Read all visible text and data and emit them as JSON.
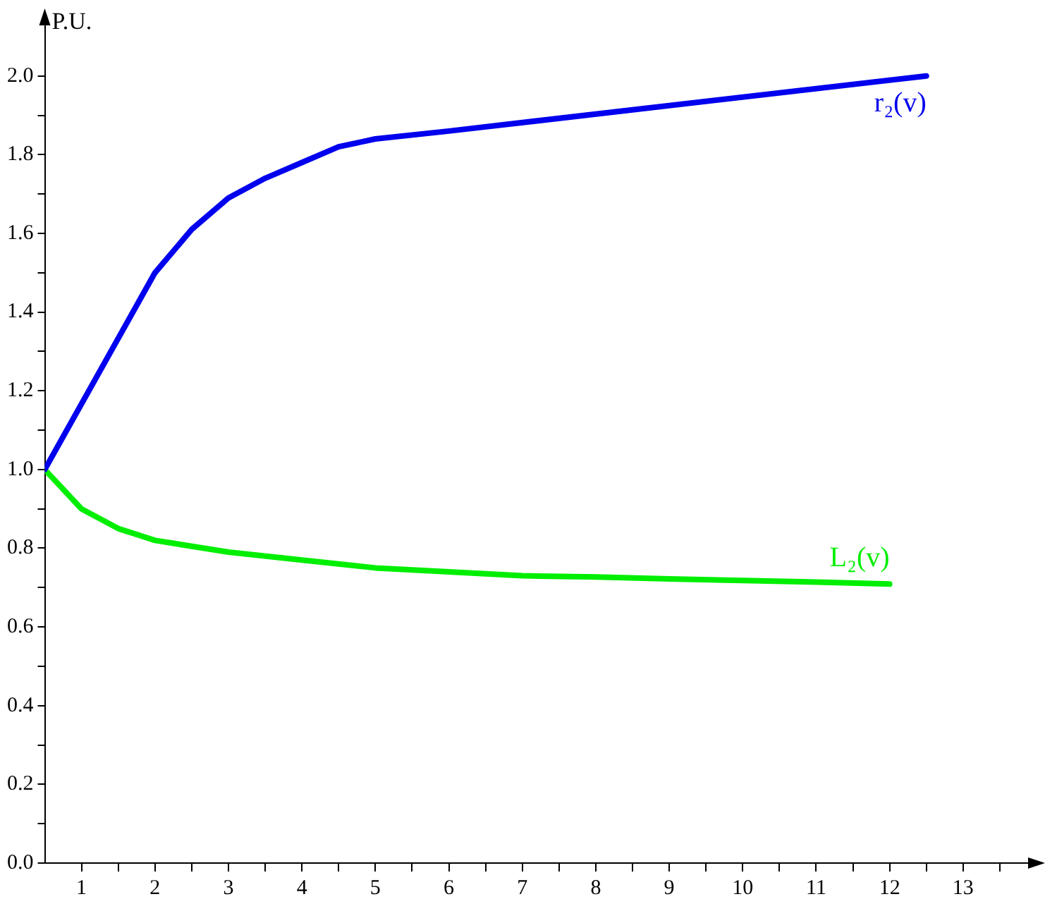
{
  "chart_data": {
    "type": "line",
    "ylabel": "P.U.",
    "xlim": [
      0.5,
      14
    ],
    "ylim": [
      0,
      2.15
    ],
    "xticks": [
      1,
      {
        "value": 1.5,
        "label": null
      },
      2,
      {
        "value": 2.5,
        "label": null
      },
      3,
      {
        "value": 3.5,
        "label": null
      },
      4,
      {
        "value": 4.5,
        "label": null
      },
      5,
      {
        "value": 5.5,
        "label": null
      },
      6,
      {
        "value": 6.5,
        "label": null
      },
      7,
      {
        "value": 7.5,
        "label": null
      },
      8,
      {
        "value": 8.5,
        "label": null
      },
      9,
      {
        "value": 9.5,
        "label": null
      },
      10,
      {
        "value": 10.5,
        "label": null
      },
      11,
      {
        "value": 11.5,
        "label": null
      },
      12,
      {
        "value": 12.5,
        "label": null
      },
      13,
      {
        "value": 13.5,
        "label": null
      }
    ],
    "yticks": [
      {
        "value": 0,
        "label": "0.0"
      },
      {
        "value": 0.1,
        "label": null
      },
      0.2,
      {
        "value": 0.3,
        "label": null
      },
      0.4,
      {
        "value": 0.5,
        "label": null
      },
      0.6,
      {
        "value": 0.7,
        "label": null
      },
      0.8,
      {
        "value": 0.9,
        "label": null
      },
      {
        "value": 1,
        "label": "1.0"
      },
      {
        "value": 1.1,
        "label": null
      },
      1.2,
      {
        "value": 1.3,
        "label": null
      },
      1.4,
      {
        "value": 1.5,
        "label": null
      },
      1.6,
      {
        "value": 1.7,
        "label": null
      },
      1.8,
      {
        "value": 1.9,
        "label": null
      },
      {
        "value": 2,
        "label": "2.0"
      }
    ],
    "grid": false,
    "legend": false,
    "marker": "none",
    "line_style": "solid",
    "series": [
      {
        "name": "r₂(v)",
        "color": "#0000ee",
        "x": [
          0.5,
          2,
          2.5,
          3,
          3.5,
          4,
          4.5,
          5,
          6,
          12.5
        ],
        "values": [
          1,
          1.5,
          1.61,
          1.69,
          1.74,
          1.78,
          1.82,
          1.84,
          1.86,
          2.0
        ]
      },
      {
        "name": "L₂(v)",
        "color": "#00ee00",
        "x": [
          0.5,
          1,
          1.5,
          2,
          3,
          4,
          5,
          6,
          7,
          8,
          9,
          10,
          11,
          12
        ],
        "values": [
          1,
          0.9,
          0.85,
          0.82,
          0.79,
          0.77,
          0.75,
          0.74,
          0.73,
          0.727,
          0.722,
          0.718,
          0.714,
          0.709
        ]
      }
    ]
  }
}
